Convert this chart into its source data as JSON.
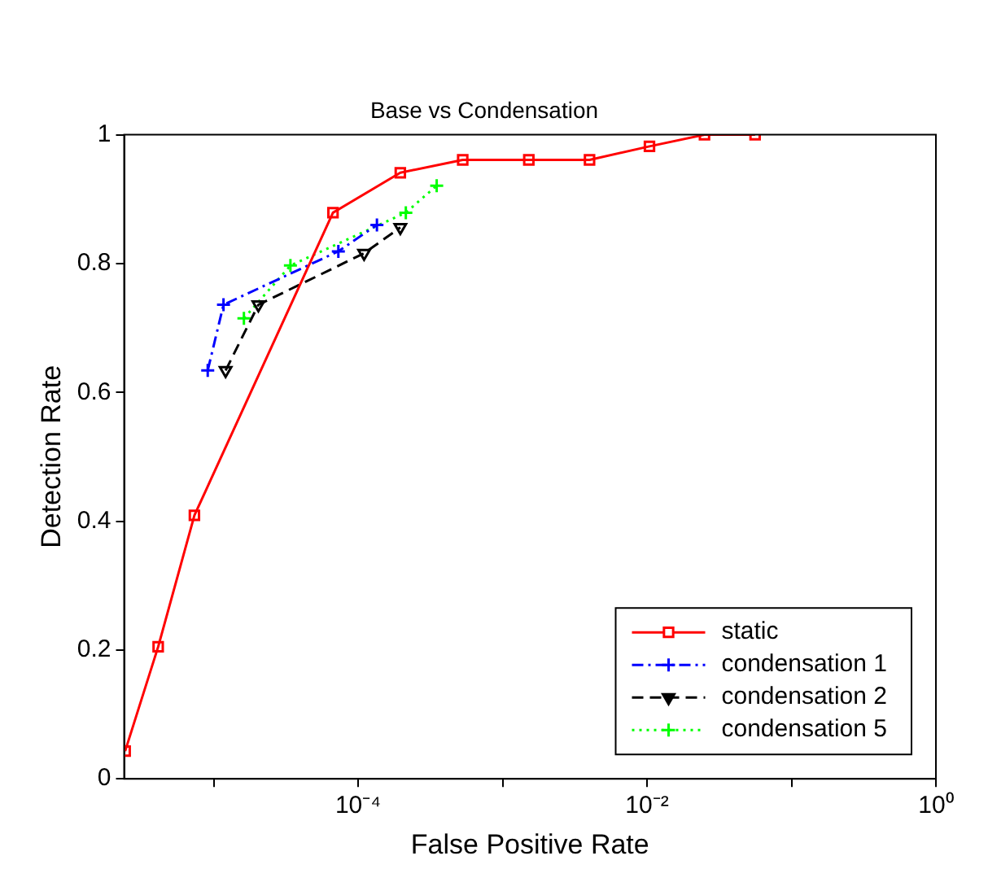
{
  "chart_data": {
    "type": "line",
    "title": "Base vs Condensation",
    "xlabel": "False Positive Rate",
    "ylabel": "Detection Rate",
    "log": "x",
    "grid": false,
    "legend": "bottom right",
    "xlim": [
      2.4e-06,
      1
    ],
    "xticks": [
      {
        "value": 1e-05,
        "label": null
      },
      {
        "value": 0.0001,
        "label": "10⁻⁴"
      },
      {
        "value": 0.001,
        "label": null
      },
      {
        "value": 0.01,
        "label": "10⁻²"
      },
      {
        "value": 0.1,
        "label": null
      },
      {
        "value": 1,
        "label": "10⁰"
      }
    ],
    "ylim": [
      0,
      1
    ],
    "yticks": [
      0,
      0.2,
      0.4,
      0.6,
      0.8,
      1
    ],
    "series": [
      {
        "name": "static",
        "color": "#ff0000",
        "marker": "square",
        "line_style": "solid",
        "x": [
          2.44e-06,
          4.13e-06,
          7.36e-06,
          6.7e-05,
          0.000196,
          0.00053,
          0.00152,
          0.004,
          0.0104,
          0.025,
          0.056
        ],
        "values": [
          0.043,
          0.205,
          0.409,
          0.879,
          0.941,
          0.961,
          0.961,
          0.961,
          0.982,
          1.0,
          1.0
        ]
      },
      {
        "name": "condensation 1",
        "color": "#0000ff",
        "marker": "cross",
        "line_style": "dashdot",
        "x": [
          9.1e-06,
          1.17e-05,
          7.3e-05,
          0.000135
        ],
        "values": [
          0.634,
          0.736,
          0.819,
          0.86
        ]
      },
      {
        "name": "condensation 2",
        "color": "#000000",
        "marker": "triangle",
        "line_style": "dashed",
        "x": [
          1.21e-05,
          2.04e-05,
          0.00011,
          0.000196
        ],
        "values": [
          0.634,
          0.736,
          0.816,
          0.856
        ]
      },
      {
        "name": "condensation 5",
        "color": "#00ff00",
        "marker": "cross",
        "line_style": "dotted",
        "x": [
          1.62e-05,
          3.4e-05,
          0.000214,
          0.00035
        ],
        "values": [
          0.715,
          0.797,
          0.879,
          0.921
        ]
      }
    ]
  }
}
